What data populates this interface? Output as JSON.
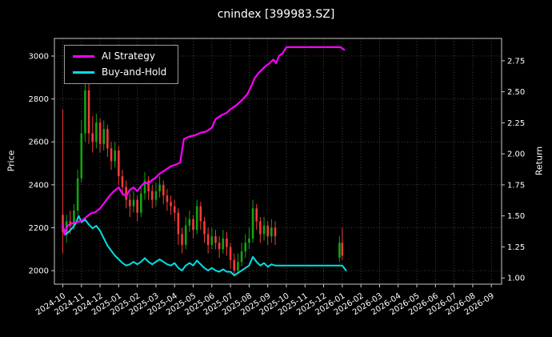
{
  "chart_data": {
    "type": "candlestick+line",
    "title": "cnindex [399983.SZ]",
    "xlabel": "",
    "ylabel_left": "Price",
    "ylabel_right": "Return",
    "legend_position": "upper-left",
    "grid": true,
    "x_tick_labels": [
      "2024-10",
      "2024-11",
      "2024-12",
      "2025-01",
      "2025-02",
      "2025-03",
      "2025-04",
      "2025-05",
      "2025-06",
      "2025-07",
      "2025-08",
      "2025-09",
      "2025-10",
      "2025-11",
      "2025-12",
      "2026-01",
      "2026-02",
      "2026-03",
      "2026-04",
      "2026-05",
      "2026-06",
      "2026-07",
      "2026-08",
      "2026-09"
    ],
    "x_domain": [
      -0.45,
      23.55
    ],
    "price_axis": {
      "label": "Price",
      "ticks": [
        2000,
        2200,
        2400,
        2600,
        2800,
        3000
      ],
      "domain": [
        1937,
        3082
      ]
    },
    "return_axis": {
      "label": "Return",
      "ticks": [
        1.0,
        1.25,
        1.5,
        1.75,
        2.0,
        2.25,
        2.5,
        2.75
      ],
      "domain": [
        0.95,
        2.93
      ]
    },
    "series": [
      {
        "name": "AI Strategy",
        "color": "#ff00ff",
        "axis": "return",
        "width": 2.2,
        "points": [
          [
            0,
            1.43
          ],
          [
            0.1,
            1.35
          ],
          [
            0.25,
            1.42
          ],
          [
            0.5,
            1.44
          ],
          [
            0.75,
            1.45
          ],
          [
            1.0,
            1.46
          ],
          [
            1.25,
            1.49
          ],
          [
            1.5,
            1.52
          ],
          [
            1.75,
            1.53
          ],
          [
            2.0,
            1.56
          ],
          [
            2.25,
            1.61
          ],
          [
            2.5,
            1.66
          ],
          [
            2.75,
            1.7
          ],
          [
            3.0,
            1.73
          ],
          [
            3.2,
            1.68
          ],
          [
            3.4,
            1.66
          ],
          [
            3.6,
            1.71
          ],
          [
            3.8,
            1.73
          ],
          [
            4.0,
            1.7
          ],
          [
            4.2,
            1.74
          ],
          [
            4.4,
            1.77
          ],
          [
            4.6,
            1.76
          ],
          [
            4.8,
            1.79
          ],
          [
            5.0,
            1.81
          ],
          [
            5.2,
            1.84
          ],
          [
            5.4,
            1.86
          ],
          [
            5.6,
            1.88
          ],
          [
            5.8,
            1.9
          ],
          [
            6.0,
            1.91
          ],
          [
            6.3,
            1.93
          ],
          [
            6.5,
            2.12
          ],
          [
            6.8,
            2.14
          ],
          [
            7.1,
            2.15
          ],
          [
            7.4,
            2.17
          ],
          [
            7.7,
            2.18
          ],
          [
            8.0,
            2.21
          ],
          [
            8.2,
            2.28
          ],
          [
            8.5,
            2.31
          ],
          [
            8.8,
            2.33
          ],
          [
            9.0,
            2.36
          ],
          [
            9.3,
            2.39
          ],
          [
            9.6,
            2.43
          ],
          [
            9.9,
            2.48
          ],
          [
            10.1,
            2.54
          ],
          [
            10.3,
            2.61
          ],
          [
            10.5,
            2.65
          ],
          [
            10.7,
            2.68
          ],
          [
            10.9,
            2.71
          ],
          [
            11.1,
            2.73
          ],
          [
            11.3,
            2.76
          ],
          [
            11.45,
            2.73
          ],
          [
            11.6,
            2.79
          ],
          [
            11.8,
            2.81
          ],
          [
            12.0,
            2.86
          ],
          [
            12.5,
            2.86
          ],
          [
            13.0,
            2.86
          ],
          [
            13.5,
            2.86
          ],
          [
            14.0,
            2.86
          ],
          [
            14.5,
            2.86
          ],
          [
            14.9,
            2.86
          ],
          [
            15.1,
            2.84
          ]
        ]
      },
      {
        "name": "Buy-and-Hold",
        "color": "#00e1e6",
        "axis": "return",
        "width": 2,
        "points": [
          [
            0,
            1.42
          ],
          [
            0.15,
            1.35
          ],
          [
            0.3,
            1.37
          ],
          [
            0.5,
            1.4
          ],
          [
            0.7,
            1.44
          ],
          [
            0.85,
            1.5
          ],
          [
            1.0,
            1.45
          ],
          [
            1.2,
            1.47
          ],
          [
            1.4,
            1.43
          ],
          [
            1.6,
            1.4
          ],
          [
            1.8,
            1.42
          ],
          [
            2.0,
            1.38
          ],
          [
            2.2,
            1.32
          ],
          [
            2.4,
            1.26
          ],
          [
            2.6,
            1.22
          ],
          [
            2.8,
            1.18
          ],
          [
            3.0,
            1.15
          ],
          [
            3.2,
            1.12
          ],
          [
            3.4,
            1.1
          ],
          [
            3.6,
            1.11
          ],
          [
            3.8,
            1.13
          ],
          [
            4.0,
            1.11
          ],
          [
            4.2,
            1.13
          ],
          [
            4.4,
            1.16
          ],
          [
            4.6,
            1.13
          ],
          [
            4.8,
            1.11
          ],
          [
            5.0,
            1.13
          ],
          [
            5.2,
            1.15
          ],
          [
            5.4,
            1.13
          ],
          [
            5.6,
            1.11
          ],
          [
            5.8,
            1.1
          ],
          [
            6.0,
            1.12
          ],
          [
            6.2,
            1.08
          ],
          [
            6.4,
            1.06
          ],
          [
            6.6,
            1.1
          ],
          [
            6.8,
            1.12
          ],
          [
            7.0,
            1.1
          ],
          [
            7.2,
            1.14
          ],
          [
            7.4,
            1.11
          ],
          [
            7.6,
            1.08
          ],
          [
            7.8,
            1.06
          ],
          [
            8.0,
            1.08
          ],
          [
            8.2,
            1.06
          ],
          [
            8.4,
            1.05
          ],
          [
            8.6,
            1.07
          ],
          [
            8.8,
            1.05
          ],
          [
            9.0,
            1.05
          ],
          [
            9.2,
            1.02
          ],
          [
            9.4,
            1.04
          ],
          [
            9.6,
            1.06
          ],
          [
            9.8,
            1.08
          ],
          [
            10.0,
            1.1
          ],
          [
            10.2,
            1.17
          ],
          [
            10.4,
            1.13
          ],
          [
            10.6,
            1.1
          ],
          [
            10.8,
            1.12
          ],
          [
            11.0,
            1.09
          ],
          [
            11.2,
            1.11
          ],
          [
            11.4,
            1.1
          ],
          [
            11.6,
            1.1
          ],
          [
            12.0,
            1.1
          ],
          [
            12.5,
            1.1
          ],
          [
            13.0,
            1.1
          ],
          [
            13.5,
            1.1
          ],
          [
            14.0,
            1.1
          ],
          [
            14.5,
            1.1
          ],
          [
            15.0,
            1.1
          ],
          [
            15.2,
            1.06
          ]
        ]
      }
    ],
    "candles": {
      "axis": "price",
      "up_color": "#12a412",
      "down_color": "#f23b3b",
      "data": [
        [
          0.0,
          2260,
          2750,
          2080,
          2180
        ],
        [
          0.2,
          2180,
          2260,
          2130,
          2230
        ],
        [
          0.4,
          2230,
          2280,
          2170,
          2210
        ],
        [
          0.6,
          2210,
          2310,
          2190,
          2280
        ],
        [
          0.8,
          2280,
          2470,
          2260,
          2430
        ],
        [
          1.0,
          2430,
          2700,
          2410,
          2640
        ],
        [
          1.2,
          2640,
          2890,
          2600,
          2840
        ],
        [
          1.4,
          2840,
          2870,
          2590,
          2640
        ],
        [
          1.6,
          2640,
          2720,
          2550,
          2600
        ],
        [
          1.8,
          2600,
          2730,
          2570,
          2690
        ],
        [
          2.0,
          2690,
          2710,
          2550,
          2590
        ],
        [
          2.2,
          2590,
          2700,
          2560,
          2660
        ],
        [
          2.4,
          2660,
          2680,
          2530,
          2570
        ],
        [
          2.6,
          2570,
          2600,
          2470,
          2510
        ],
        [
          2.8,
          2510,
          2600,
          2480,
          2560
        ],
        [
          3.0,
          2560,
          2580,
          2400,
          2440
        ],
        [
          3.2,
          2440,
          2470,
          2350,
          2390
        ],
        [
          3.4,
          2390,
          2420,
          2290,
          2330
        ],
        [
          3.6,
          2330,
          2360,
          2250,
          2300
        ],
        [
          3.8,
          2300,
          2370,
          2270,
          2330
        ],
        [
          4.0,
          2330,
          2350,
          2230,
          2270
        ],
        [
          4.2,
          2270,
          2400,
          2250,
          2360
        ],
        [
          4.4,
          2360,
          2460,
          2330,
          2420
        ],
        [
          4.6,
          2420,
          2440,
          2330,
          2370
        ],
        [
          4.8,
          2370,
          2400,
          2290,
          2330
        ],
        [
          5.0,
          2330,
          2410,
          2300,
          2370
        ],
        [
          5.2,
          2370,
          2440,
          2340,
          2400
        ],
        [
          5.4,
          2400,
          2420,
          2310,
          2350
        ],
        [
          5.6,
          2350,
          2380,
          2280,
          2320
        ],
        [
          5.8,
          2320,
          2350,
          2260,
          2300
        ],
        [
          6.0,
          2300,
          2330,
          2230,
          2270
        ],
        [
          6.2,
          2270,
          2290,
          2120,
          2170
        ],
        [
          6.4,
          2170,
          2200,
          2080,
          2120
        ],
        [
          6.6,
          2120,
          2250,
          2100,
          2210
        ],
        [
          6.8,
          2210,
          2280,
          2180,
          2240
        ],
        [
          7.0,
          2240,
          2260,
          2150,
          2190
        ],
        [
          7.2,
          2190,
          2330,
          2170,
          2300
        ],
        [
          7.4,
          2300,
          2320,
          2190,
          2230
        ],
        [
          7.6,
          2230,
          2250,
          2130,
          2170
        ],
        [
          7.8,
          2170,
          2200,
          2080,
          2120
        ],
        [
          8.0,
          2120,
          2200,
          2100,
          2160
        ],
        [
          8.2,
          2160,
          2190,
          2100,
          2130
        ],
        [
          8.4,
          2130,
          2160,
          2060,
          2100
        ],
        [
          8.6,
          2100,
          2190,
          2080,
          2150
        ],
        [
          8.8,
          2150,
          2180,
          2070,
          2110
        ],
        [
          9.0,
          2110,
          2130,
          2010,
          2050
        ],
        [
          9.2,
          2050,
          2080,
          1975,
          2000
        ],
        [
          9.4,
          2000,
          2080,
          1985,
          2040
        ],
        [
          9.6,
          2040,
          2130,
          2020,
          2090
        ],
        [
          9.8,
          2090,
          2170,
          2060,
          2130
        ],
        [
          10.0,
          2130,
          2200,
          2100,
          2150
        ],
        [
          10.2,
          2150,
          2330,
          2130,
          2290
        ],
        [
          10.4,
          2290,
          2310,
          2190,
          2230
        ],
        [
          10.6,
          2230,
          2250,
          2130,
          2170
        ],
        [
          10.8,
          2170,
          2250,
          2140,
          2210
        ],
        [
          11.0,
          2210,
          2230,
          2120,
          2160
        ],
        [
          11.2,
          2160,
          2240,
          2130,
          2200
        ],
        [
          11.4,
          2200,
          2230,
          2120,
          2160
        ],
        [
          14.85,
          2060,
          2160,
          2040,
          2130
        ],
        [
          15.0,
          2130,
          2200,
          2050,
          2070
        ]
      ]
    },
    "style": {
      "background": "#000000",
      "grid_color": "#555555",
      "spine_color": "#c8c8c8",
      "text_color": "#ffffff"
    }
  }
}
